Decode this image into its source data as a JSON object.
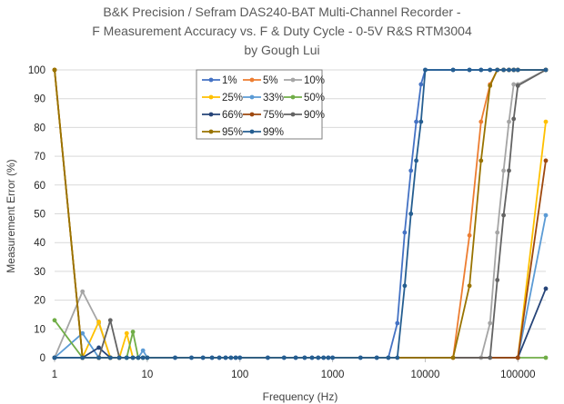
{
  "chart_data": {
    "type": "line",
    "title": [
      "B&K Precision / Sefram DAS240-BAT Multi-Channel Recorder -",
      "F Measurement Accuracy vs. F & Duty Cycle - 0-5V R&S RTM3004",
      "by Gough Lui"
    ],
    "xlabel": "Frequency (Hz)",
    "ylabel": "Measurement Error (%)",
    "xscale": "log",
    "xlim": [
      1,
      200000
    ],
    "ylim": [
      0,
      100
    ],
    "x_ticks": [
      1,
      10,
      100,
      1000,
      10000,
      100000
    ],
    "x_tick_labels": [
      "1",
      "10",
      "100",
      "1000",
      "10000",
      "100000"
    ],
    "y_ticks": [
      0,
      10,
      20,
      30,
      40,
      50,
      60,
      70,
      80,
      90,
      100
    ],
    "grid": "horizontal",
    "legend_position": "top-center",
    "series": [
      {
        "name": "1%",
        "color": "#4472C4",
        "points": [
          [
            1,
            0
          ],
          [
            2,
            0
          ],
          [
            3,
            0
          ],
          [
            4,
            0
          ],
          [
            5,
            0
          ],
          [
            6,
            0
          ],
          [
            7,
            0
          ],
          [
            8,
            0
          ],
          [
            9,
            0
          ],
          [
            10,
            0
          ],
          [
            20,
            0
          ],
          [
            30,
            0
          ],
          [
            40,
            0
          ],
          [
            50,
            0
          ],
          [
            60,
            0
          ],
          [
            70,
            0
          ],
          [
            80,
            0
          ],
          [
            90,
            0
          ],
          [
            100,
            0
          ],
          [
            200,
            0
          ],
          [
            300,
            0
          ],
          [
            400,
            0
          ],
          [
            500,
            0
          ],
          [
            600,
            0
          ],
          [
            700,
            0
          ],
          [
            800,
            0
          ],
          [
            900,
            0
          ],
          [
            1000,
            0
          ],
          [
            2000,
            0
          ],
          [
            3000,
            0
          ],
          [
            4000,
            0
          ],
          [
            5000,
            12
          ],
          [
            6000,
            43.5
          ],
          [
            7000,
            65
          ],
          [
            8000,
            82
          ],
          [
            9000,
            95
          ],
          [
            10000,
            100
          ],
          [
            20000,
            100
          ],
          [
            30000,
            100
          ],
          [
            40000,
            100
          ],
          [
            50000,
            100
          ],
          [
            60000,
            100
          ],
          [
            70000,
            100
          ],
          [
            80000,
            100
          ],
          [
            90000,
            100
          ],
          [
            100000,
            100
          ],
          [
            200000,
            100
          ]
        ]
      },
      {
        "name": "5%",
        "color": "#ED7D31",
        "points": [
          [
            1,
            0
          ],
          [
            2,
            0
          ],
          [
            3,
            0
          ],
          [
            4,
            0
          ],
          [
            5,
            0
          ],
          [
            20000,
            0
          ],
          [
            30000,
            42.5
          ],
          [
            40000,
            82
          ],
          [
            50000,
            95
          ],
          [
            60000,
            100
          ],
          [
            70000,
            100
          ],
          [
            80000,
            100
          ],
          [
            90000,
            100
          ],
          [
            100000,
            100
          ],
          [
            200000,
            100
          ]
        ]
      },
      {
        "name": "10%",
        "color": "#A5A5A5",
        "points": [
          [
            1,
            0
          ],
          [
            2,
            23
          ],
          [
            3,
            12
          ],
          [
            4,
            0
          ],
          [
            5,
            0
          ],
          [
            40000,
            0
          ],
          [
            50000,
            12
          ],
          [
            60000,
            43.5
          ],
          [
            70000,
            65
          ],
          [
            80000,
            82
          ],
          [
            90000,
            95
          ],
          [
            100000,
            95
          ],
          [
            200000,
            100
          ]
        ]
      },
      {
        "name": "25%",
        "color": "#FFC000",
        "points": [
          [
            1,
            100
          ],
          [
            2,
            0
          ],
          [
            3,
            12.5
          ],
          [
            4,
            0
          ],
          [
            5,
            0
          ],
          [
            6,
            8.5
          ],
          [
            7,
            0
          ],
          [
            100000,
            0
          ],
          [
            200000,
            82
          ]
        ]
      },
      {
        "name": "33%",
        "color": "#5B9BD5",
        "points": [
          [
            1,
            0
          ],
          [
            2,
            8.5
          ],
          [
            3,
            0
          ],
          [
            4,
            0
          ],
          [
            5,
            0
          ],
          [
            6,
            0
          ],
          [
            7,
            0
          ],
          [
            8,
            0
          ],
          [
            9,
            2.5
          ],
          [
            10,
            0
          ],
          [
            100000,
            0
          ],
          [
            200000,
            49.5
          ]
        ]
      },
      {
        "name": "50%",
        "color": "#70AD47",
        "points": [
          [
            1,
            13
          ],
          [
            2,
            0
          ],
          [
            3,
            0
          ],
          [
            4,
            0
          ],
          [
            5,
            0
          ],
          [
            6,
            0
          ],
          [
            7,
            9
          ],
          [
            8,
            0
          ],
          [
            9,
            0
          ],
          [
            10,
            0
          ],
          [
            200000,
            0
          ]
        ]
      },
      {
        "name": "66%",
        "color": "#264478",
        "points": [
          [
            1,
            0
          ],
          [
            2,
            0
          ],
          [
            3,
            3.5
          ],
          [
            4,
            0
          ],
          [
            5,
            0
          ],
          [
            100000,
            0
          ],
          [
            200000,
            24
          ]
        ]
      },
      {
        "name": "75%",
        "color": "#9E480E",
        "points": [
          [
            1,
            100
          ],
          [
            2,
            0
          ],
          [
            3,
            0
          ],
          [
            4,
            0
          ],
          [
            100000,
            0
          ],
          [
            200000,
            68.5
          ]
        ]
      },
      {
        "name": "90%",
        "color": "#636363",
        "points": [
          [
            1,
            0
          ],
          [
            2,
            0
          ],
          [
            3,
            0
          ],
          [
            4,
            13
          ],
          [
            5,
            0
          ],
          [
            50000,
            0
          ],
          [
            60000,
            27
          ],
          [
            70000,
            49.5
          ],
          [
            80000,
            65
          ],
          [
            90000,
            83
          ],
          [
            100000,
            94.5
          ],
          [
            200000,
            100
          ]
        ]
      },
      {
        "name": "95%",
        "color": "#997300",
        "points": [
          [
            1,
            100
          ],
          [
            2,
            0
          ],
          [
            3,
            0
          ],
          [
            4,
            0
          ],
          [
            5,
            0
          ],
          [
            20000,
            0
          ],
          [
            30000,
            25
          ],
          [
            40000,
            68.5
          ],
          [
            50000,
            94.5
          ],
          [
            60000,
            100
          ],
          [
            70000,
            100
          ],
          [
            80000,
            100
          ],
          [
            90000,
            100
          ],
          [
            100000,
            100
          ],
          [
            200000,
            100
          ]
        ]
      },
      {
        "name": "99%",
        "color": "#255E91",
        "points": [
          [
            1,
            0
          ],
          [
            2,
            0
          ],
          [
            3,
            0
          ],
          [
            4,
            0
          ],
          [
            5,
            0
          ],
          [
            6,
            0
          ],
          [
            7,
            0
          ],
          [
            8,
            0
          ],
          [
            9,
            0
          ],
          [
            10,
            0
          ],
          [
            20,
            0
          ],
          [
            30,
            0
          ],
          [
            40,
            0
          ],
          [
            50,
            0
          ],
          [
            60,
            0
          ],
          [
            70,
            0
          ],
          [
            80,
            0
          ],
          [
            90,
            0
          ],
          [
            100,
            0
          ],
          [
            200,
            0
          ],
          [
            300,
            0
          ],
          [
            400,
            0
          ],
          [
            500,
            0
          ],
          [
            600,
            0
          ],
          [
            700,
            0
          ],
          [
            800,
            0
          ],
          [
            900,
            0
          ],
          [
            1000,
            0
          ],
          [
            2000,
            0
          ],
          [
            3000,
            0
          ],
          [
            4000,
            0
          ],
          [
            5000,
            0
          ],
          [
            6000,
            25
          ],
          [
            7000,
            50
          ],
          [
            8000,
            68.5
          ],
          [
            9000,
            82
          ],
          [
            10000,
            100
          ],
          [
            20000,
            100
          ],
          [
            30000,
            100
          ],
          [
            40000,
            100
          ],
          [
            50000,
            100
          ],
          [
            60000,
            100
          ],
          [
            70000,
            100
          ],
          [
            80000,
            100
          ],
          [
            90000,
            100
          ],
          [
            100000,
            100
          ],
          [
            200000,
            100
          ]
        ]
      }
    ]
  }
}
